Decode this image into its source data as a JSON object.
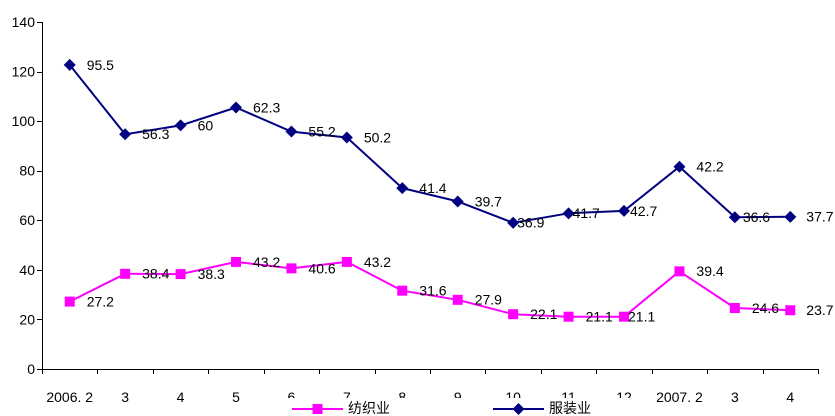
{
  "chart_data": {
    "type": "line",
    "stacked": true,
    "categories": [
      "2006. 2",
      "3",
      "4",
      "5",
      "6",
      "7",
      "8",
      "9",
      "10",
      "11",
      "12",
      "2007. 2",
      "3",
      "4"
    ],
    "series": [
      {
        "name": "纺织业",
        "color": "#FF00FF",
        "marker": "square",
        "values": [
          27.2,
          38.4,
          38.3,
          43.2,
          40.6,
          43.2,
          31.6,
          27.9,
          22.1,
          21.1,
          21.1,
          39.4,
          24.6,
          23.7
        ]
      },
      {
        "name": "服装业",
        "color": "#000080",
        "marker": "diamond",
        "values": [
          95.5,
          56.3,
          60,
          62.3,
          55.2,
          50.2,
          41.4,
          39.7,
          36.9,
          41.7,
          42.7,
          42.2,
          36.6,
          37.7
        ]
      }
    ],
    "ylim": [
      0,
      140
    ],
    "yticks": [
      0,
      20,
      40,
      60,
      80,
      100,
      120,
      140
    ],
    "data_labels": true,
    "grid": false,
    "legend": "bottom"
  }
}
